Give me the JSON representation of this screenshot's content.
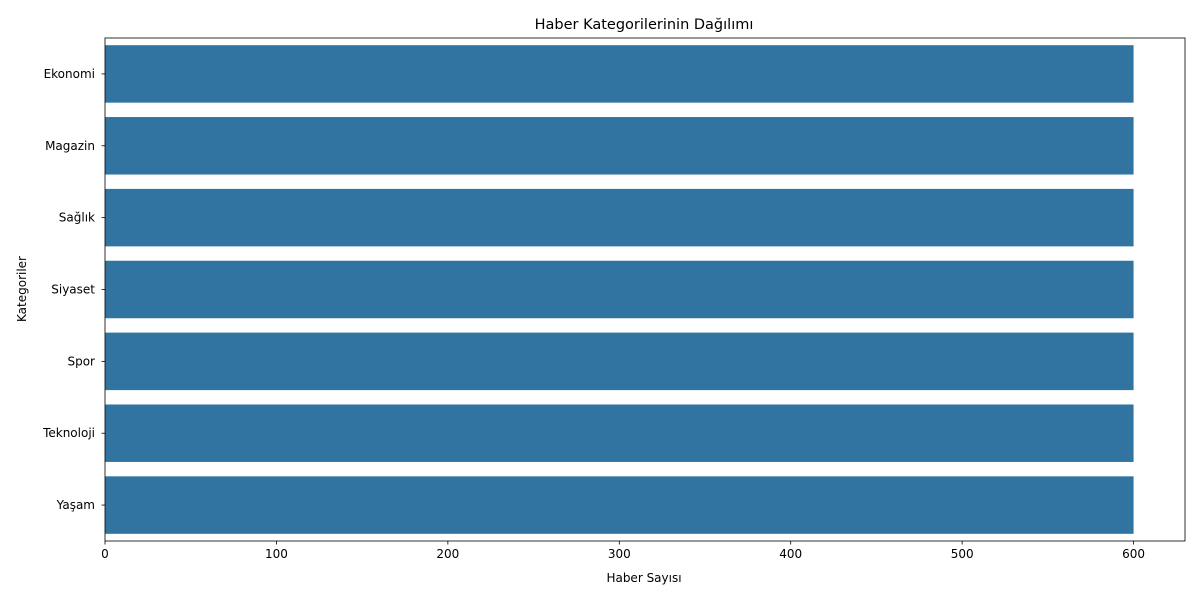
{
  "colors": {
    "bar": "#3274a1",
    "axis": "#000000",
    "background": "#ffffff"
  },
  "chart_data": {
    "type": "bar",
    "orientation": "horizontal",
    "title": "Haber Kategorilerinin Dağılımı",
    "xlabel": "Haber Sayısı",
    "ylabel": "Kategoriler",
    "categories": [
      "Ekonomi",
      "Magazin",
      "Sağlık",
      "Siyaset",
      "Spor",
      "Teknoloji",
      "Yaşam"
    ],
    "values": [
      600,
      600,
      600,
      600,
      600,
      600,
      600
    ],
    "xlim": [
      0,
      630
    ],
    "xticks": [
      0,
      100,
      200,
      300,
      400,
      500,
      600
    ],
    "grid": false,
    "legend": "none"
  }
}
